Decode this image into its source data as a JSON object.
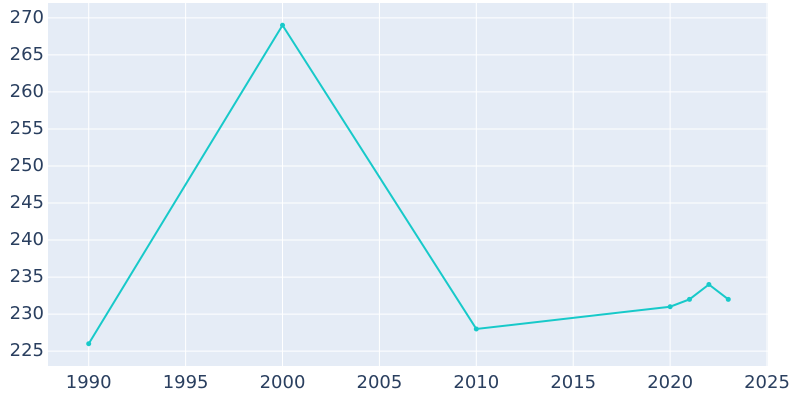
{
  "chart_data": {
    "type": "line",
    "x": [
      1990,
      2000,
      2010,
      2020,
      2021,
      2022,
      2023
    ],
    "series": [
      {
        "color": "#17c9c9",
        "values": [
          226,
          269,
          228,
          231,
          232,
          234,
          232
        ]
      }
    ],
    "xlim": [
      1987.9,
      2025.05
    ],
    "xticks": [
      1990,
      1995,
      2000,
      2005,
      2010,
      2015,
      2020,
      2025
    ],
    "ylim": [
      223,
      272
    ],
    "yticks": [
      225,
      230,
      235,
      240,
      245,
      250,
      255,
      260,
      265,
      270
    ],
    "grid": true,
    "background": "#e5ecf6"
  }
}
